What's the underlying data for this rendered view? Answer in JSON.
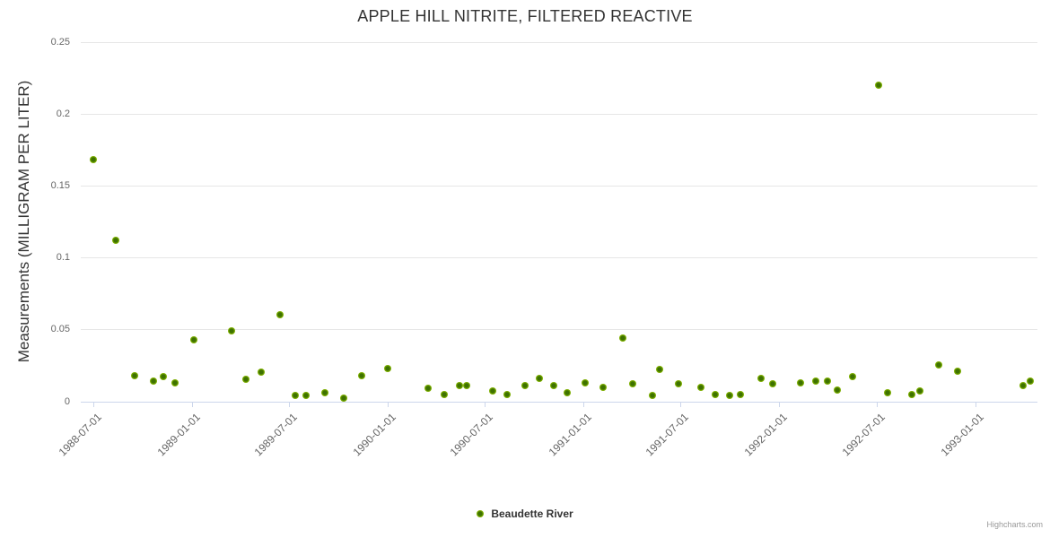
{
  "colors": {
    "marker_outer": "#8cc000",
    "marker_core": "#3e7200",
    "grid": "#e6e6e6",
    "axis_line": "#ccd6eb",
    "tick_label": "#666666",
    "title_text": "#333333"
  },
  "credits_label": "Highcharts.com",
  "chart_data": {
    "type": "scatter",
    "title": "APPLE HILL NITRITE, FILTERED REACTIVE",
    "xlabel": "",
    "ylabel": "Measurements (MILLIGRAM PER LITER)",
    "ylim": [
      0,
      0.25
    ],
    "grid": true,
    "legend_position": "bottom-center",
    "yticks": [
      0,
      0.05,
      0.1,
      0.15,
      0.2,
      0.25
    ],
    "ytick_labels": [
      "0",
      "0.05",
      "0.1",
      "0.15",
      "0.2",
      "0.25"
    ],
    "xtick_labels": [
      "1988-07-01",
      "1989-01-01",
      "1989-07-01",
      "1990-01-01",
      "1990-07-01",
      "1991-01-01",
      "1991-07-01",
      "1992-01-01",
      "1992-07-01",
      "1993-01-01"
    ],
    "series": [
      {
        "name": "Beaudette River",
        "marker_color": "#8cc000",
        "points": [
          {
            "date": "1988-07-01",
            "value": 0.168
          },
          {
            "date": "1988-08-12",
            "value": 0.112
          },
          {
            "date": "1988-09-16",
            "value": 0.018
          },
          {
            "date": "1988-10-21",
            "value": 0.014
          },
          {
            "date": "1988-11-09",
            "value": 0.017
          },
          {
            "date": "1988-12-01",
            "value": 0.013
          },
          {
            "date": "1989-01-05",
            "value": 0.043
          },
          {
            "date": "1989-03-16",
            "value": 0.049
          },
          {
            "date": "1989-04-12",
            "value": 0.015
          },
          {
            "date": "1989-05-10",
            "value": 0.02
          },
          {
            "date": "1989-06-14",
            "value": 0.06
          },
          {
            "date": "1989-07-13",
            "value": 0.004
          },
          {
            "date": "1989-08-02",
            "value": 0.004
          },
          {
            "date": "1989-09-06",
            "value": 0.006
          },
          {
            "date": "1989-10-11",
            "value": 0.002
          },
          {
            "date": "1989-11-13",
            "value": 0.018
          },
          {
            "date": "1990-01-01",
            "value": 0.023
          },
          {
            "date": "1990-03-17",
            "value": 0.009
          },
          {
            "date": "1990-04-16",
            "value": 0.005
          },
          {
            "date": "1990-05-15",
            "value": 0.011
          },
          {
            "date": "1990-05-28",
            "value": 0.011
          },
          {
            "date": "1990-07-16",
            "value": 0.007
          },
          {
            "date": "1990-08-11",
            "value": 0.005
          },
          {
            "date": "1990-09-14",
            "value": 0.011
          },
          {
            "date": "1990-10-11",
            "value": 0.016
          },
          {
            "date": "1990-11-06",
            "value": 0.011
          },
          {
            "date": "1990-12-02",
            "value": 0.006
          },
          {
            "date": "1991-01-04",
            "value": 0.013
          },
          {
            "date": "1991-02-07",
            "value": 0.01
          },
          {
            "date": "1991-03-16",
            "value": 0.044
          },
          {
            "date": "1991-04-03",
            "value": 0.012
          },
          {
            "date": "1991-05-09",
            "value": 0.004
          },
          {
            "date": "1991-05-23",
            "value": 0.022
          },
          {
            "date": "1991-06-27",
            "value": 0.012
          },
          {
            "date": "1991-08-08",
            "value": 0.01
          },
          {
            "date": "1991-09-04",
            "value": 0.005
          },
          {
            "date": "1991-09-30",
            "value": 0.004
          },
          {
            "date": "1991-10-20",
            "value": 0.005
          },
          {
            "date": "1991-11-28",
            "value": 0.016
          },
          {
            "date": "1991-12-20",
            "value": 0.012
          },
          {
            "date": "1992-02-09",
            "value": 0.013
          },
          {
            "date": "1992-03-09",
            "value": 0.014
          },
          {
            "date": "1992-03-31",
            "value": 0.014
          },
          {
            "date": "1992-04-18",
            "value": 0.008
          },
          {
            "date": "1992-05-16",
            "value": 0.017
          },
          {
            "date": "1992-07-04",
            "value": 0.22
          },
          {
            "date": "1992-07-21",
            "value": 0.006
          },
          {
            "date": "1992-09-04",
            "value": 0.005
          },
          {
            "date": "1992-09-19",
            "value": 0.007
          },
          {
            "date": "1992-10-24",
            "value": 0.025
          },
          {
            "date": "1992-11-28",
            "value": 0.021
          },
          {
            "date": "1993-03-30",
            "value": 0.011
          },
          {
            "date": "1993-04-13",
            "value": 0.014
          }
        ]
      }
    ]
  }
}
